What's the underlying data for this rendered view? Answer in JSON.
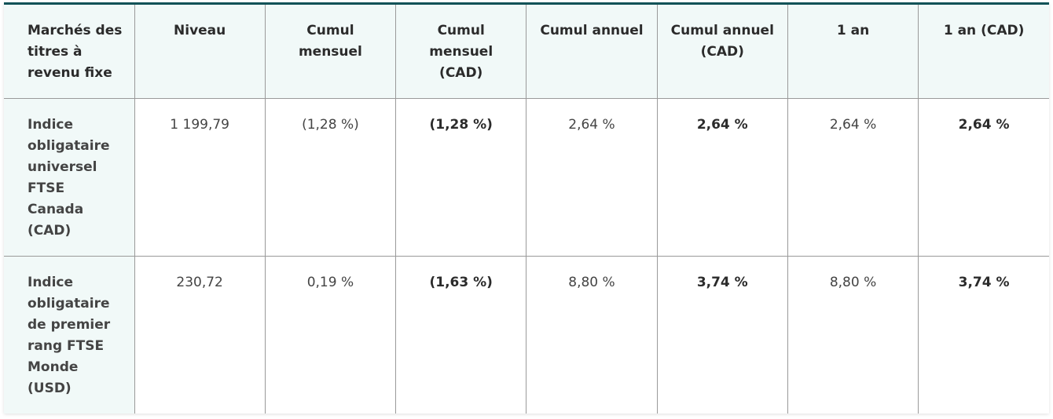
{
  "table": {
    "headers": [
      "Marchés des titres à revenu fixe",
      "Niveau",
      "Cumul mensuel",
      "Cumul mensuel (CAD)",
      "Cumul annuel",
      "Cumul annuel (CAD)",
      "1 an",
      "1 an (CAD)"
    ],
    "rows": [
      {
        "name": "Indice obligataire universel FTSE Canada (CAD)",
        "cells": [
          "1 199,79",
          "(1,28 %)",
          "(1,28 %)",
          "2,64 %",
          "2,64 %",
          "2,64 %",
          "2,64 %"
        ]
      },
      {
        "name": "Indice obligataire de premier rang FTSE Monde (USD)",
        "cells": [
          "230,72",
          "0,19 %",
          "(1,63 %)",
          "8,80 %",
          "3,74 %",
          "8,80 %",
          "3,74 %"
        ]
      }
    ]
  },
  "colors": {
    "accent_border": "#0f5257",
    "header_bg": "#f1f9f8",
    "grid": "#9a9a9a"
  }
}
